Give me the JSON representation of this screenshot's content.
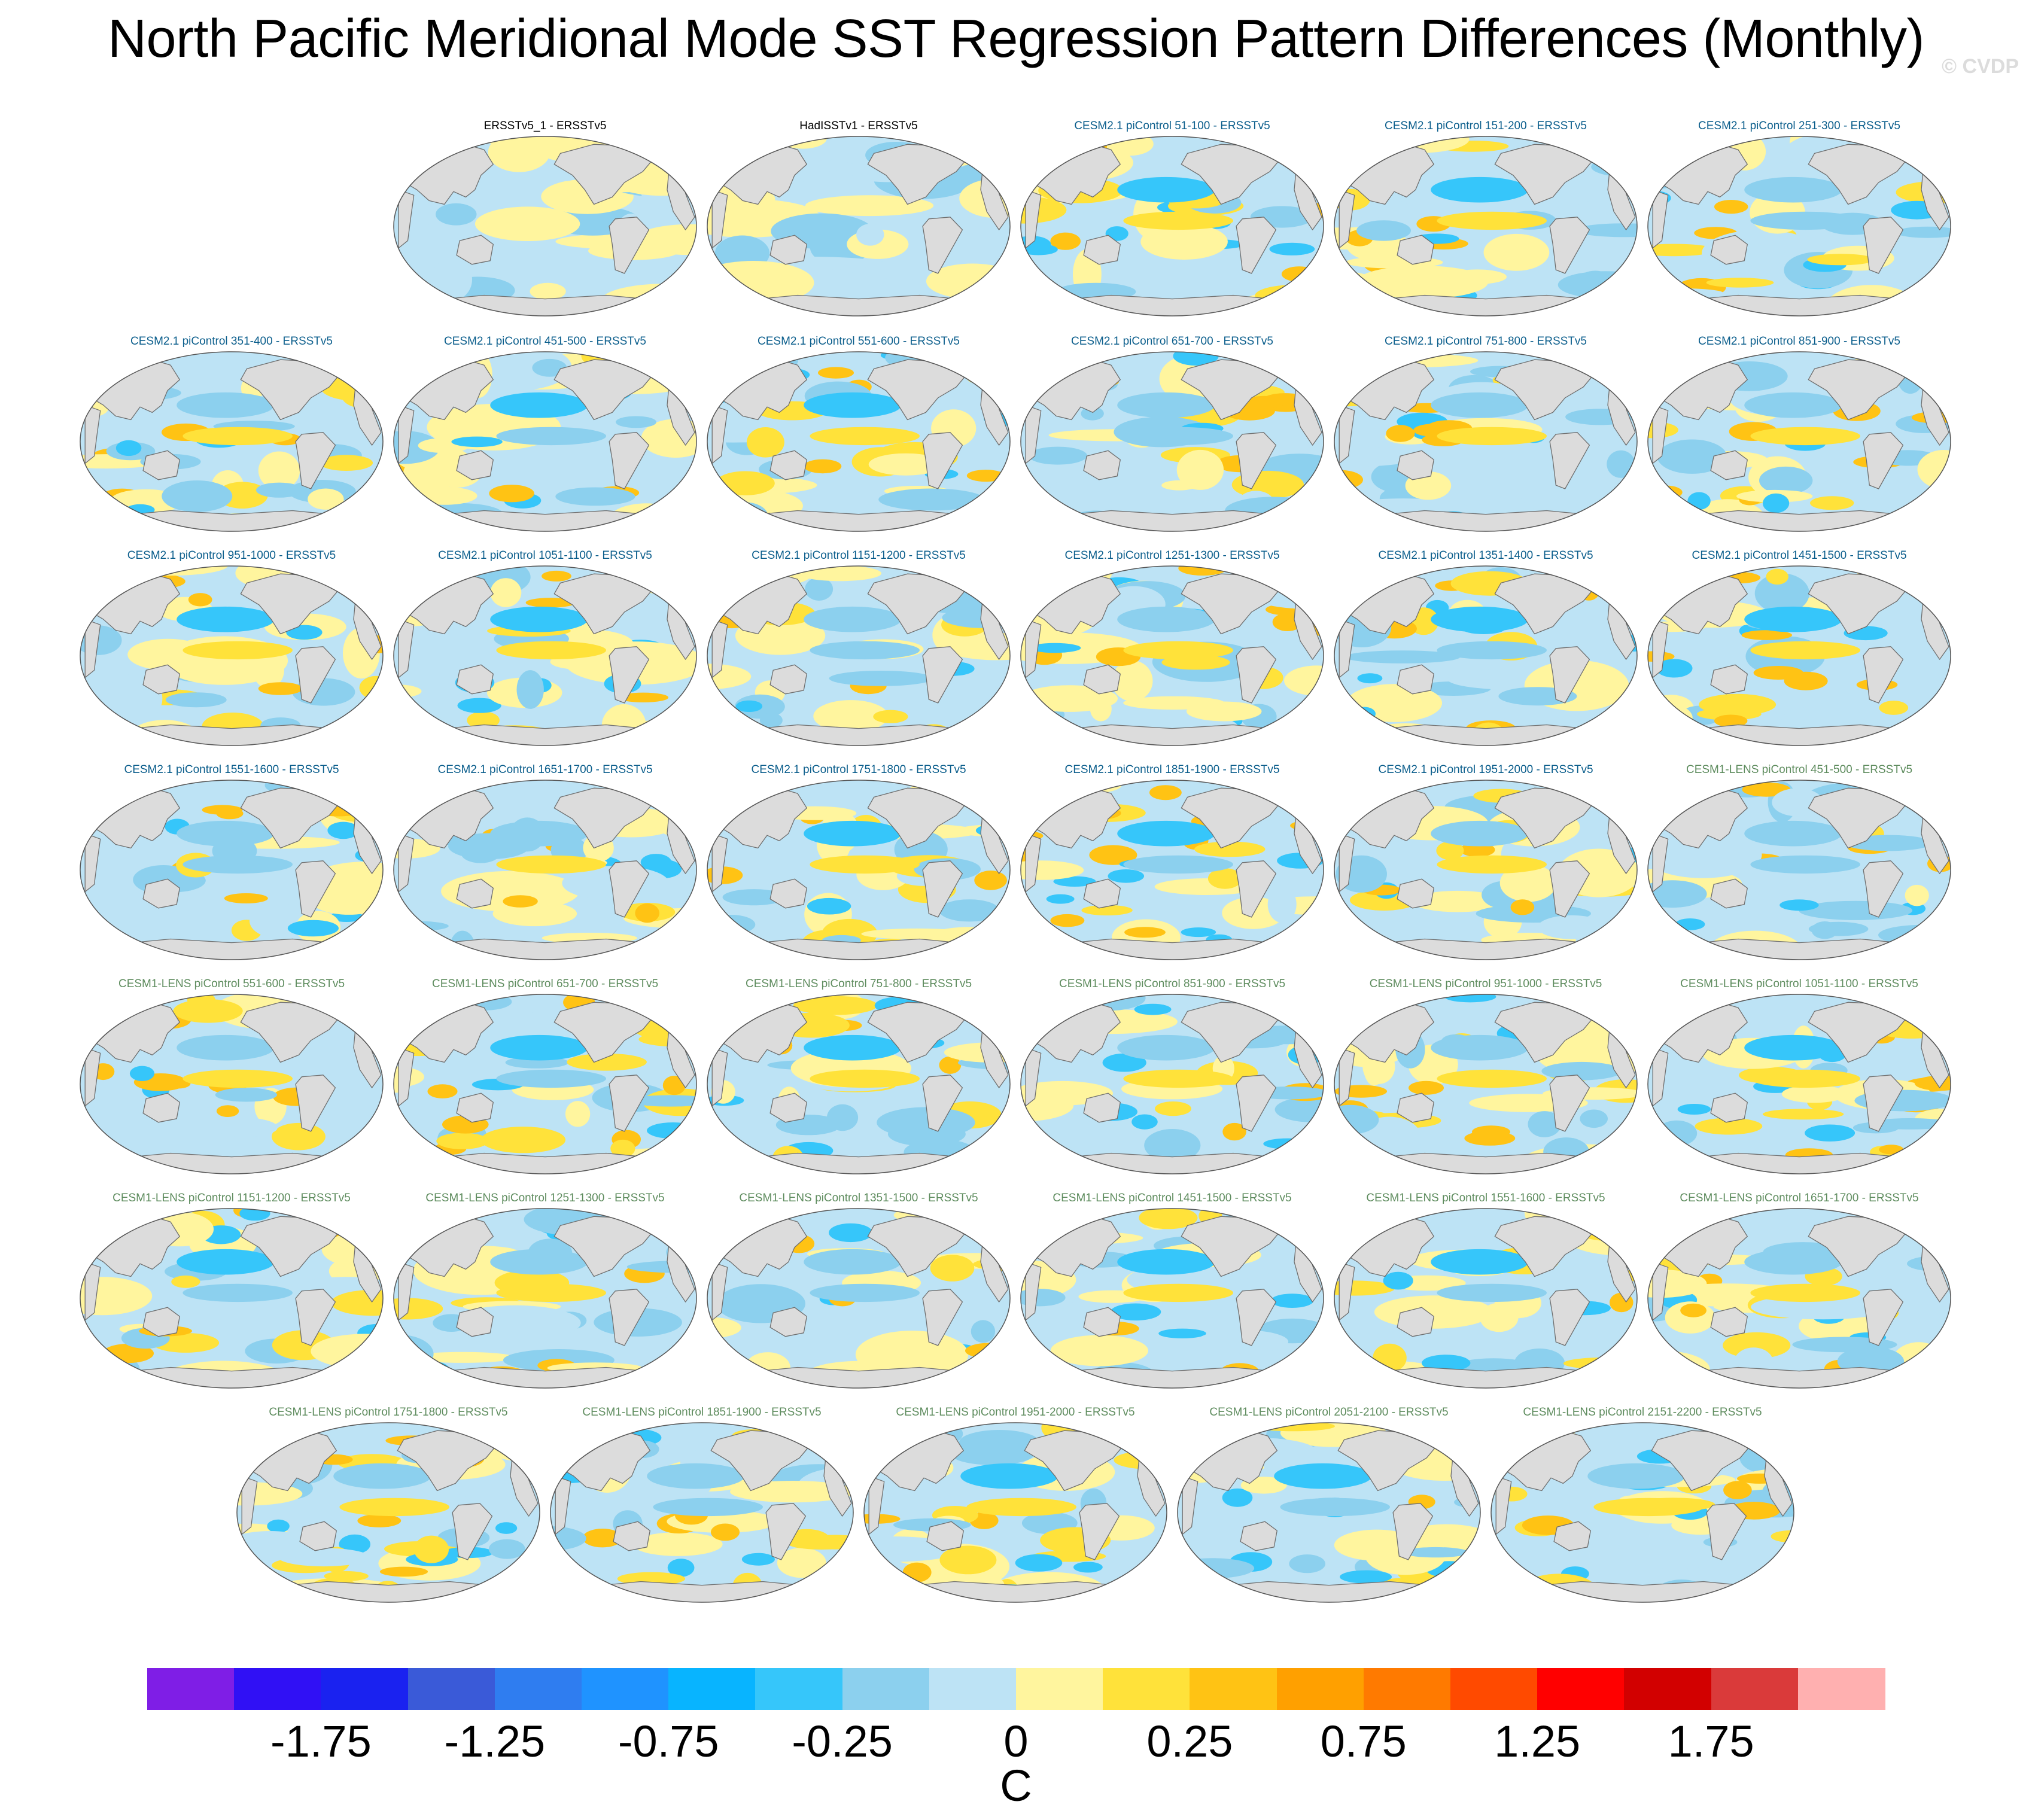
{
  "title": "North Pacific Meridional Mode SST Regression Pattern Differences (Monthly)",
  "credit": "© CVDP",
  "colors": {
    "obs_title": "#000000",
    "cesm2_title": "#0b5e8c",
    "cesm1_title": "#5e8c5e",
    "land": "#dcdcdc",
    "coast": "#6e6e6e"
  },
  "chart_data": {
    "type": "heatmap",
    "description_field": "SST regression pattern difference maps (°C), one global map per panel",
    "panels": [
      {
        "title": "ERSSTv5_1 - ERSSTv5",
        "group": "obs"
      },
      {
        "title": "HadISSTv1 - ERSSTv5",
        "group": "obs"
      },
      {
        "title": "CESM2.1 piControl 51-100 - ERSSTv5",
        "group": "cesm2"
      },
      {
        "title": "CESM2.1 piControl 151-200 - ERSSTv5",
        "group": "cesm2"
      },
      {
        "title": "CESM2.1 piControl 251-300 - ERSSTv5",
        "group": "cesm2"
      },
      {
        "title": "CESM2.1 piControl 351-400 - ERSSTv5",
        "group": "cesm2"
      },
      {
        "title": "CESM2.1 piControl 451-500 - ERSSTv5",
        "group": "cesm2"
      },
      {
        "title": "CESM2.1 piControl 551-600 - ERSSTv5",
        "group": "cesm2"
      },
      {
        "title": "CESM2.1 piControl 651-700 - ERSSTv5",
        "group": "cesm2"
      },
      {
        "title": "CESM2.1 piControl 751-800 - ERSSTv5",
        "group": "cesm2"
      },
      {
        "title": "CESM2.1 piControl 851-900 - ERSSTv5",
        "group": "cesm2"
      },
      {
        "title": "CESM2.1 piControl 951-1000 - ERSSTv5",
        "group": "cesm2"
      },
      {
        "title": "CESM2.1 piControl 1051-1100 - ERSSTv5",
        "group": "cesm2"
      },
      {
        "title": "CESM2.1 piControl 1151-1200 - ERSSTv5",
        "group": "cesm2"
      },
      {
        "title": "CESM2.1 piControl 1251-1300 - ERSSTv5",
        "group": "cesm2"
      },
      {
        "title": "CESM2.1 piControl 1351-1400 - ERSSTv5",
        "group": "cesm2"
      },
      {
        "title": "CESM2.1 piControl 1451-1500 - ERSSTv5",
        "group": "cesm2"
      },
      {
        "title": "CESM2.1 piControl 1551-1600 - ERSSTv5",
        "group": "cesm2"
      },
      {
        "title": "CESM2.1 piControl 1651-1700 - ERSSTv5",
        "group": "cesm2"
      },
      {
        "title": "CESM2.1 piControl 1751-1800 - ERSSTv5",
        "group": "cesm2"
      },
      {
        "title": "CESM2.1 piControl 1851-1900 - ERSSTv5",
        "group": "cesm2"
      },
      {
        "title": "CESM2.1 piControl 1951-2000 - ERSSTv5",
        "group": "cesm2"
      },
      {
        "title": "CESM1-LENS piControl 451-500 - ERSSTv5",
        "group": "cesm1"
      },
      {
        "title": "CESM1-LENS piControl 551-600 - ERSSTv5",
        "group": "cesm1"
      },
      {
        "title": "CESM1-LENS piControl 651-700 - ERSSTv5",
        "group": "cesm1"
      },
      {
        "title": "CESM1-LENS piControl 751-800 - ERSSTv5",
        "group": "cesm1"
      },
      {
        "title": "CESM1-LENS piControl 851-900 - ERSSTv5",
        "group": "cesm1"
      },
      {
        "title": "CESM1-LENS piControl 951-1000 - ERSSTv5",
        "group": "cesm1"
      },
      {
        "title": "CESM1-LENS piControl 1051-1100 - ERSSTv5",
        "group": "cesm1"
      },
      {
        "title": "CESM1-LENS piControl 1151-1200 - ERSSTv5",
        "group": "cesm1"
      },
      {
        "title": "CESM1-LENS piControl 1251-1300 - ERSSTv5",
        "group": "cesm1"
      },
      {
        "title": "CESM1-LENS piControl 1351-1500 - ERSSTv5",
        "group": "cesm1"
      },
      {
        "title": "CESM1-LENS piControl 1451-1500 - ERSSTv5",
        "group": "cesm1"
      },
      {
        "title": "CESM1-LENS piControl 1551-1600 - ERSSTv5",
        "group": "cesm1"
      },
      {
        "title": "CESM1-LENS piControl 1651-1700 - ERSSTv5",
        "group": "cesm1"
      },
      {
        "title": "CESM1-LENS piControl 1751-1800 - ERSSTv5",
        "group": "cesm1"
      },
      {
        "title": "CESM1-LENS piControl 1851-1900 - ERSSTv5",
        "group": "cesm1"
      },
      {
        "title": "CESM1-LENS piControl 1951-2000 - ERSSTv5",
        "group": "cesm1"
      },
      {
        "title": "CESM1-LENS piControl 2051-2100 - ERSSTv5",
        "group": "cesm1"
      },
      {
        "title": "CESM1-LENS piControl 2151-2200 - ERSSTv5",
        "group": "cesm1"
      }
    ],
    "colorbar": {
      "unit": "C",
      "levels": [
        -2,
        -1.75,
        -1.5,
        -1.25,
        -1,
        -0.75,
        -0.5,
        -0.25,
        -0.1,
        0,
        0.1,
        0.25,
        0.5,
        0.75,
        1,
        1.25,
        1.5,
        1.75,
        2
      ],
      "tick_labels": [
        "-1.75",
        "-1.25",
        "-0.75",
        "-0.25",
        "0",
        "0.25",
        "0.75",
        "1.25",
        "1.75"
      ],
      "tick_values": [
        -1.75,
        -1.25,
        -0.75,
        -0.25,
        0,
        0.25,
        0.75,
        1.25,
        1.75
      ],
      "colors": [
        "#7f1ee6",
        "#3010f5",
        "#1a22f0",
        "#3a5ad8",
        "#2f7df0",
        "#1f93ff",
        "#08b4ff",
        "#36c6fa",
        "#8cd0ee",
        "#bde3f5",
        "#fff59e",
        "#ffe23a",
        "#ffc314",
        "#ffa000",
        "#ff7a00",
        "#ff4a00",
        "#ff0000",
        "#d20000",
        "#da3a3a",
        "#ffb0b0"
      ]
    }
  }
}
